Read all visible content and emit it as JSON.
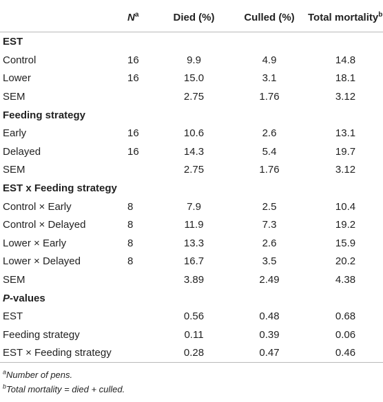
{
  "header": {
    "col0": "",
    "n_letter": "N",
    "n_sup": "a",
    "died": "Died (%)",
    "culled": "Culled (%)",
    "total": "Total mortality",
    "total_sup": "b",
    "total_suffix": " (%)"
  },
  "sections": [
    {
      "title": "EST",
      "title_italic_prefix": "",
      "rows": [
        {
          "label": "Control",
          "n": "16",
          "died": "9.9",
          "culled": "4.9",
          "total": "14.8"
        },
        {
          "label": "Lower",
          "n": "16",
          "died": "15.0",
          "culled": "3.1",
          "total": "18.1"
        },
        {
          "label": "SEM",
          "n": "",
          "died": "2.75",
          "culled": "1.76",
          "total": "3.12"
        }
      ]
    },
    {
      "title": "Feeding strategy",
      "title_italic_prefix": "",
      "rows": [
        {
          "label": "Early",
          "n": "16",
          "died": "10.6",
          "culled": "2.6",
          "total": "13.1"
        },
        {
          "label": "Delayed",
          "n": "16",
          "died": "14.3",
          "culled": "5.4",
          "total": "19.7"
        },
        {
          "label": "SEM",
          "n": "",
          "died": "2.75",
          "culled": "1.76",
          "total": "3.12"
        }
      ]
    },
    {
      "title": "EST x Feeding strategy",
      "title_italic_prefix": "",
      "rows": [
        {
          "label": "Control × Early",
          "n": "8",
          "died": "7.9",
          "culled": "2.5",
          "total": "10.4"
        },
        {
          "label": "Control × Delayed",
          "n": "8",
          "died": "11.9",
          "culled": "7.3",
          "total": "19.2"
        },
        {
          "label": "Lower × Early",
          "n": "8",
          "died": "13.3",
          "culled": "2.6",
          "total": "15.9"
        },
        {
          "label": "Lower × Delayed",
          "n": "8",
          "died": "16.7",
          "culled": "3.5",
          "total": "20.2"
        },
        {
          "label": "SEM",
          "n": "",
          "died": "3.89",
          "culled": "2.49",
          "total": "4.38"
        }
      ]
    },
    {
      "title": "-values",
      "title_italic_prefix": "P",
      "rows": [
        {
          "label": "EST",
          "n": "",
          "died": "0.56",
          "culled": "0.48",
          "total": "0.68"
        },
        {
          "label": "Feeding strategy",
          "n": "",
          "died": "0.11",
          "culled": "0.39",
          "total": "0.06"
        },
        {
          "label": "EST × Feeding strategy",
          "n": "",
          "died": "0.28",
          "culled": "0.47",
          "total": "0.46"
        }
      ]
    }
  ],
  "footnotes": [
    {
      "mark": "a",
      "text": "Number of pens."
    },
    {
      "mark": "b",
      "text": "Total mortality = died + culled."
    }
  ]
}
